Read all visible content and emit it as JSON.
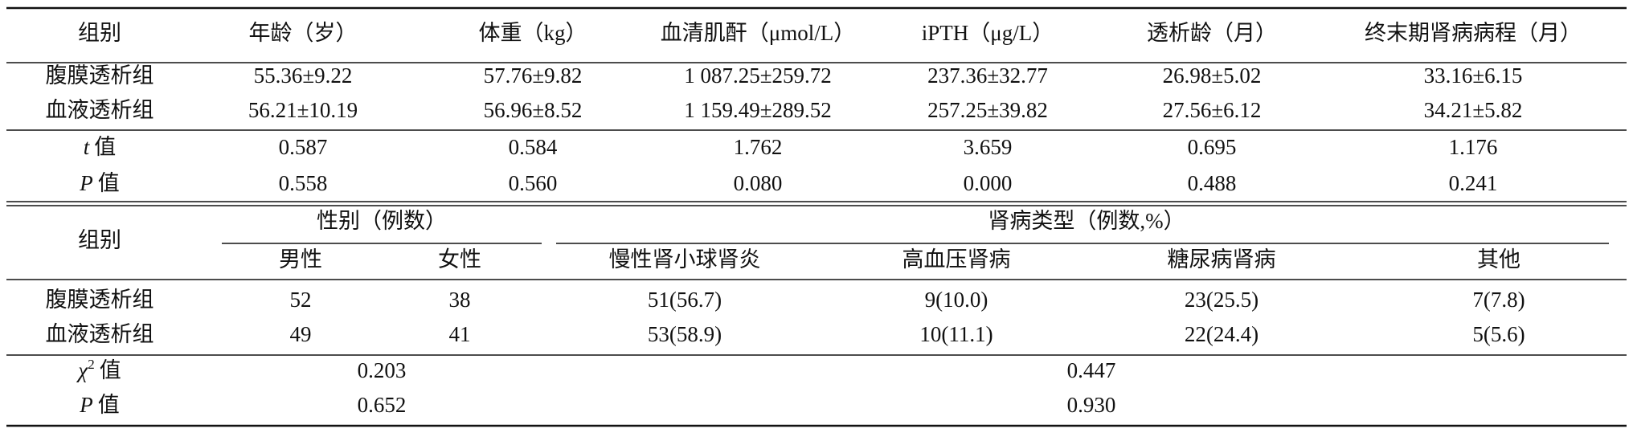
{
  "table1": {
    "header": [
      "组别",
      "年龄（岁）",
      "体重（kg）",
      "血清肌酐（μmol/L）",
      "iPTH（μg/L）",
      "透析龄（月）",
      "终末期肾病病程（月）"
    ],
    "rows": [
      [
        "腹膜透析组",
        "55.36±9.22",
        "57.76±9.82",
        "1 087.25±259.72",
        "237.36±32.77",
        "26.98±5.02",
        "33.16±6.15"
      ],
      [
        "血液透析组",
        "56.21±10.19",
        "56.96±8.52",
        "1 159.49±289.52",
        "257.25±39.82",
        "27.56±6.12",
        "34.21±5.82"
      ]
    ],
    "stats": [
      {
        "symbol": "t",
        "label": "值",
        "values": [
          "0.587",
          "0.584",
          "1.762",
          "3.659",
          "0.695",
          "1.176"
        ]
      },
      {
        "symbol": "P",
        "label": "值",
        "values": [
          "0.558",
          "0.560",
          "0.080",
          "0.000",
          "0.488",
          "0.241"
        ]
      }
    ]
  },
  "table2": {
    "group_header": "组别",
    "sex_header": "性别（例数）",
    "sex_columns": [
      "男性",
      "女性"
    ],
    "type_header": "肾病类型（例数,%）",
    "type_columns": [
      "慢性肾小球肾炎",
      "高血压肾病",
      "糖尿病肾病",
      "其他"
    ],
    "rows": [
      [
        "腹膜透析组",
        "52",
        "38",
        "51(56.7)",
        "9(10.0)",
        "23(25.5)",
        "7(7.8)"
      ],
      [
        "血液透析组",
        "49",
        "41",
        "53(58.9)",
        "10(11.1)",
        "22(24.4)",
        "5(5.6)"
      ]
    ],
    "stats": [
      {
        "symbol": "χ",
        "sup": "2",
        "label": "值",
        "values": [
          "0.203",
          "0.447"
        ]
      },
      {
        "symbol": "P",
        "label": "值",
        "values": [
          "0.652",
          "0.930"
        ]
      }
    ]
  }
}
